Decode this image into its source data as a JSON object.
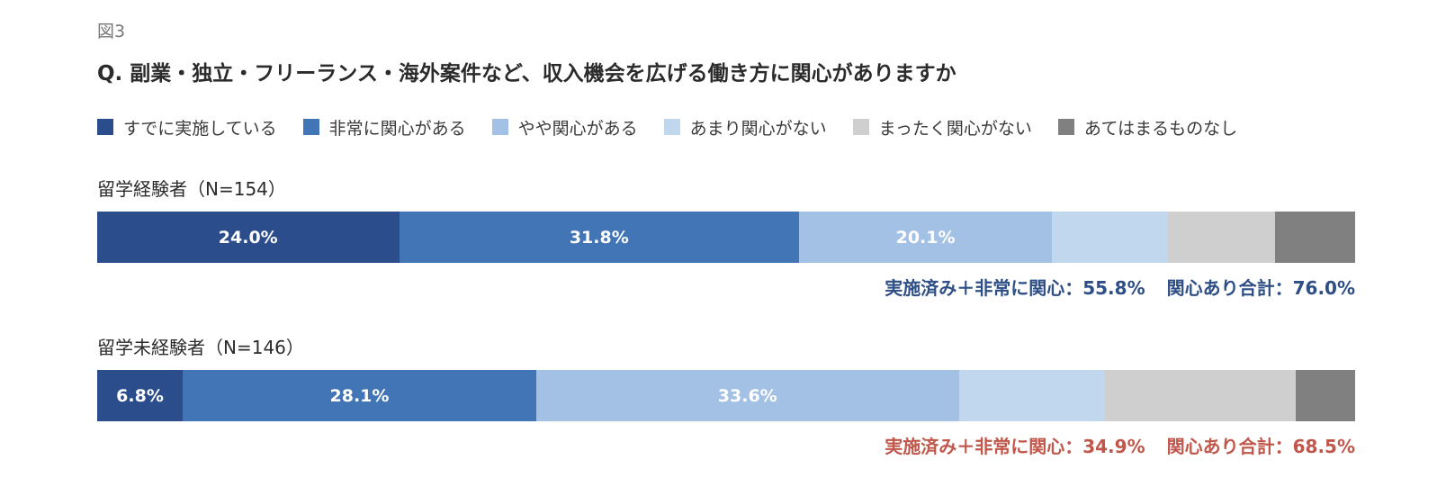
{
  "figure_label": "図3",
  "chart_data": {
    "type": "bar",
    "orientation": "horizontal",
    "stacked": true,
    "percent_stacked": true,
    "title": "Q. 副業・独立・フリーランス・海外案件など、収入機会を広げる働き方に関心がありますか",
    "xlim": [
      0,
      100
    ],
    "grid": false,
    "legend_position": "top",
    "categories": [
      "すでに実施している",
      "非常に関心がある",
      "やや関心がある",
      "あまり関心がない",
      "まったく関心がない",
      "あてはまるものなし"
    ],
    "colors": [
      "#2b4d8c",
      "#4175b5",
      "#a2c1e4",
      "#c1d7ee",
      "#cfcfcf",
      "#808080"
    ],
    "groups": [
      {
        "label": "留学経験者（N=154）",
        "values": [
          24.0,
          31.8,
          20.1,
          9.2,
          8.5,
          6.4
        ],
        "labels": [
          "24.0%",
          "31.8%",
          "20.1%",
          "",
          "",
          ""
        ],
        "summary": [
          "実施済み＋非常に関心：55.8%",
          "関心あり合計：76.0%"
        ],
        "summary_color": "#2e4e86"
      },
      {
        "label": "留学未経験者（N=146）",
        "values": [
          6.8,
          28.1,
          33.6,
          11.6,
          15.2,
          4.7
        ],
        "labels": [
          "6.8%",
          "28.1%",
          "33.6%",
          "",
          "",
          ""
        ],
        "summary": [
          "実施済み＋非常に関心：34.9%",
          "関心あり合計：68.5%"
        ],
        "summary_color": "#c0574a"
      }
    ]
  }
}
